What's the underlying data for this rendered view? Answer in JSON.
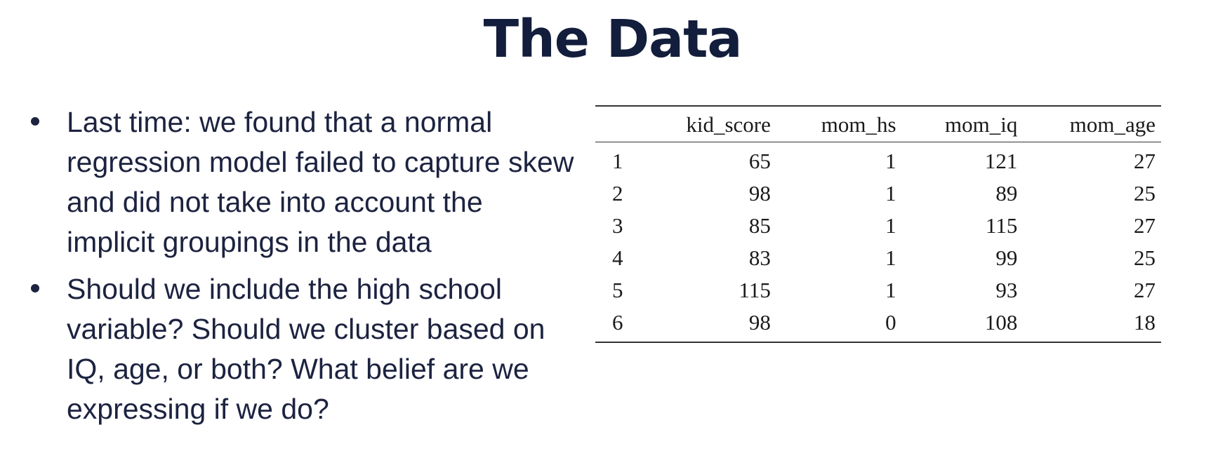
{
  "slide": {
    "title": "The Data",
    "bullets": [
      "Last time: we found that a normal regression model failed to capture skew and did not take into account the implicit groupings in the data",
      "Should we include the high school variable? Should we cluster based on IQ, age, or both? What belief are we expressing if we do?"
    ]
  },
  "table": {
    "columns": [
      "",
      "kid_score",
      "mom_hs",
      "mom_iq",
      "mom_age"
    ],
    "rows": [
      [
        "1",
        "65",
        "1",
        "121",
        "27"
      ],
      [
        "2",
        "98",
        "1",
        "89",
        "25"
      ],
      [
        "3",
        "85",
        "1",
        "115",
        "27"
      ],
      [
        "4",
        "83",
        "1",
        "99",
        "25"
      ],
      [
        "5",
        "115",
        "1",
        "93",
        "27"
      ],
      [
        "6",
        "98",
        "0",
        "108",
        "18"
      ]
    ]
  }
}
